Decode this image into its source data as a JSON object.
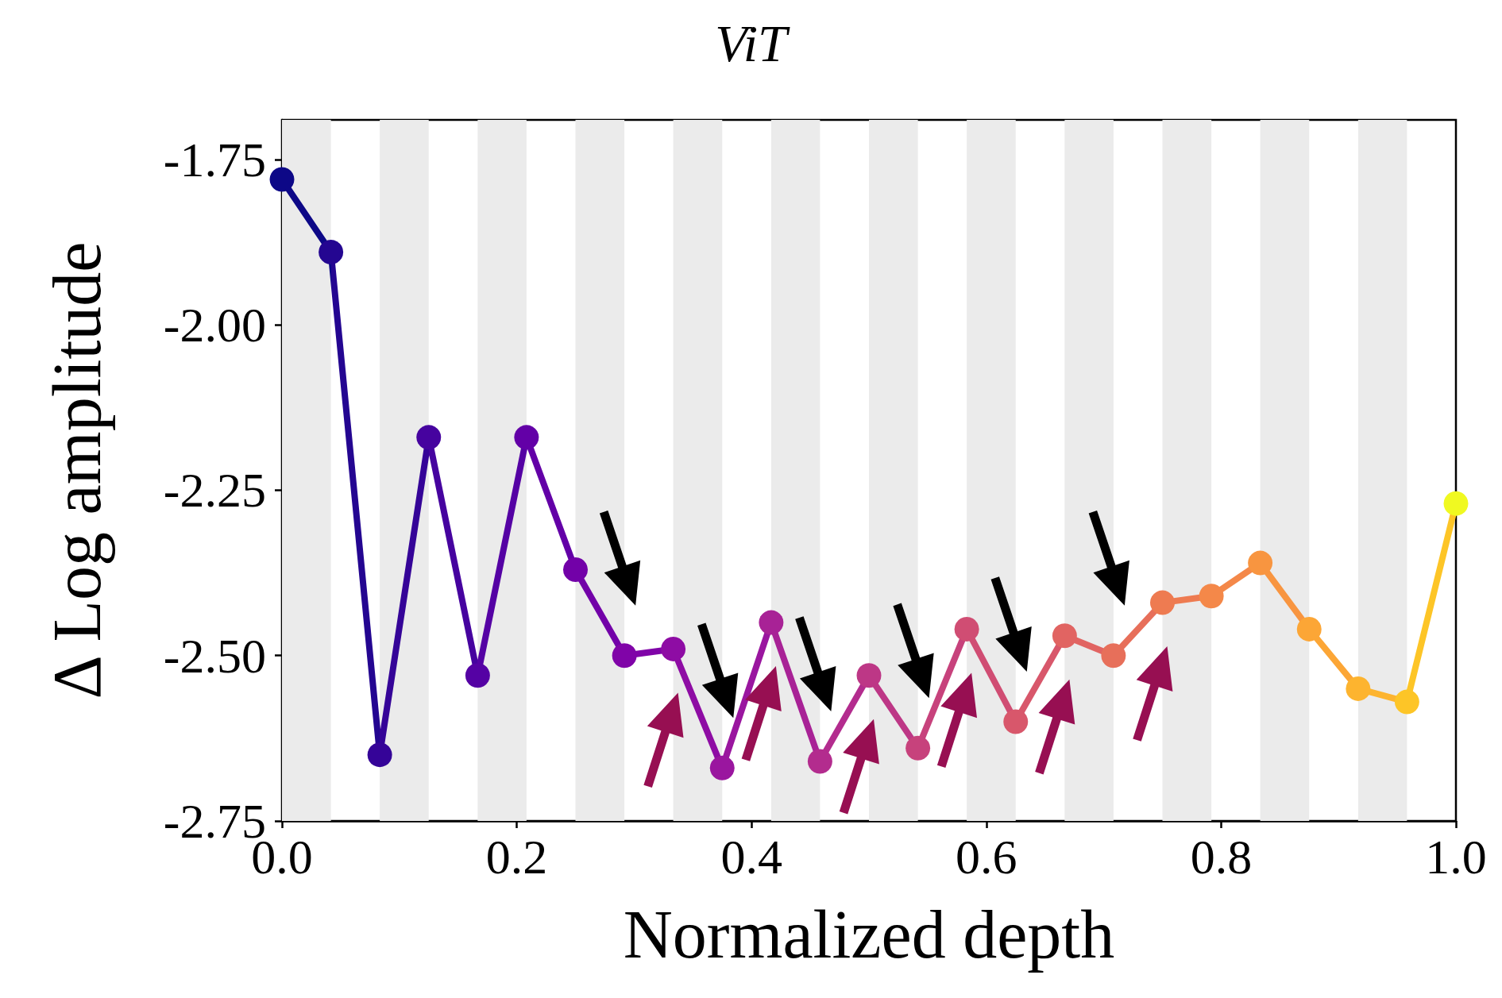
{
  "chart_data": {
    "type": "line",
    "title": "ViT",
    "xlabel": "Normalized depth",
    "ylabel": "Δ Log amplitude",
    "x": [
      0,
      0.0417,
      0.0833,
      0.125,
      0.1667,
      0.2083,
      0.25,
      0.2917,
      0.3333,
      0.375,
      0.4167,
      0.4583,
      0.5,
      0.5417,
      0.5833,
      0.625,
      0.6667,
      0.7083,
      0.75,
      0.7917,
      0.8333,
      0.875,
      0.9167,
      0.9583,
      1
    ],
    "values": [
      -1.78,
      -1.89,
      -2.65,
      -2.17,
      -2.53,
      -2.17,
      -2.37,
      -2.5,
      -2.49,
      -2.67,
      -2.45,
      -2.66,
      -2.53,
      -2.64,
      -2.46,
      -2.6,
      -2.47,
      -2.5,
      -2.42,
      -2.41,
      -2.36,
      -2.46,
      -2.55,
      -2.57,
      -2.27
    ],
    "colors": [
      "#0d0887",
      "#240691",
      "#350498",
      "#46039f",
      "#5502a4",
      "#6300a7",
      "#7201a8",
      "#8004a8",
      "#8e0ca4",
      "#9a169f",
      "#a82296",
      "#b32c8e",
      "#bd3786",
      "#c7427c",
      "#d04d73",
      "#d8576b",
      "#e16462",
      "#e76f5a",
      "#ee7b51",
      "#f48849",
      "#f89540",
      "#fca636",
      "#fdb42f",
      "#fdc527",
      "#f0f921"
    ],
    "xlim": [
      0,
      1
    ],
    "ylim": [
      -2.75,
      -1.69
    ],
    "xticks": [
      {
        "value": 0,
        "label": "0.0"
      },
      {
        "value": 0.2,
        "label": "0.2"
      },
      {
        "value": 0.4,
        "label": "0.4"
      },
      {
        "value": 0.6,
        "label": "0.6"
      },
      {
        "value": 0.8,
        "label": "0.8"
      },
      {
        "value": 1,
        "label": "1.0"
      }
    ],
    "yticks": [
      {
        "value": -1.75,
        "label": "-1.75"
      },
      {
        "value": -2,
        "label": "-2.00"
      },
      {
        "value": -2.25,
        "label": "-2.25"
      },
      {
        "value": -2.5,
        "label": "-2.50"
      },
      {
        "value": -2.75,
        "label": "-2.75"
      }
    ],
    "bands": [
      {
        "axis": "x",
        "from": 0,
        "to": 0.0417,
        "color": "#ebebeb"
      },
      {
        "axis": "x",
        "from": 0.0833,
        "to": 0.125,
        "color": "#ebebeb"
      },
      {
        "axis": "x",
        "from": 0.1667,
        "to": 0.2083,
        "color": "#ebebeb"
      },
      {
        "axis": "x",
        "from": 0.25,
        "to": 0.2917,
        "color": "#ebebeb"
      },
      {
        "axis": "x",
        "from": 0.3333,
        "to": 0.375,
        "color": "#ebebeb"
      },
      {
        "axis": "x",
        "from": 0.4167,
        "to": 0.4583,
        "color": "#ebebeb"
      },
      {
        "axis": "x",
        "from": 0.5,
        "to": 0.5417,
        "color": "#ebebeb"
      },
      {
        "axis": "x",
        "from": 0.5833,
        "to": 0.625,
        "color": "#ebebeb"
      },
      {
        "axis": "x",
        "from": 0.6667,
        "to": 0.7083,
        "color": "#ebebeb"
      },
      {
        "axis": "x",
        "from": 0.75,
        "to": 0.7917,
        "color": "#ebebeb"
      },
      {
        "axis": "x",
        "from": 0.8333,
        "to": 0.875,
        "color": "#ebebeb"
      },
      {
        "axis": "x",
        "from": 0.9167,
        "to": 0.9583,
        "color": "#ebebeb"
      }
    ],
    "marker": "circle",
    "grid": false
  }
}
